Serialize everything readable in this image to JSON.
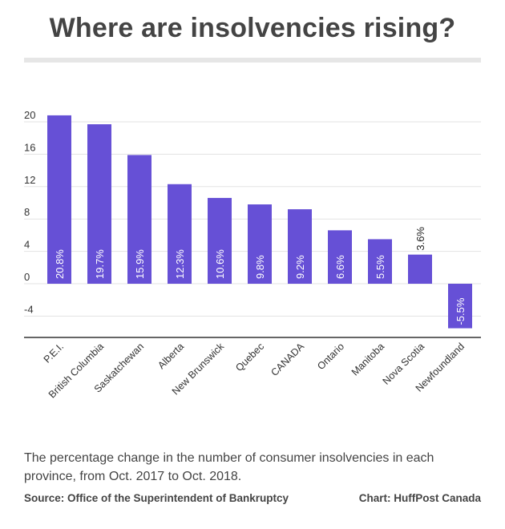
{
  "title": "Where are insolvencies rising?",
  "caption": "The percentage change in the number of consumer insolvencies in each province, from Oct. 2017 to Oct. 2018.",
  "source": "Source: Office of the Superintendent of Bankruptcy",
  "credit": "Chart: HuffPost Canada",
  "colors": {
    "bar": "#6650d6",
    "grid": "#e3e3e3",
    "axis": "#333333"
  },
  "chart_data": {
    "type": "bar",
    "categories": [
      "P.E.I.",
      "British Columbia",
      "Saskatchewan",
      "Alberta",
      "New Brunswick",
      "Quebec",
      "CANADA",
      "Ontario",
      "Manitoba",
      "Nova Scotia",
      "Newfoundland"
    ],
    "values": [
      20.8,
      19.7,
      15.9,
      12.3,
      10.6,
      9.8,
      9.2,
      6.6,
      5.5,
      3.6,
      -5.5
    ],
    "data_labels": [
      "20.8%",
      "19.7%",
      "15.9%",
      "12.3%",
      "10.6%",
      "9.8%",
      "9.2%",
      "6.6%",
      "5.5%",
      "3.6%",
      "-5.5%"
    ],
    "yticks": [
      -4,
      0,
      4,
      8,
      12,
      16,
      20
    ],
    "ylim": [
      -6.8,
      21
    ],
    "grid": true,
    "xlabel": "",
    "ylabel": ""
  }
}
